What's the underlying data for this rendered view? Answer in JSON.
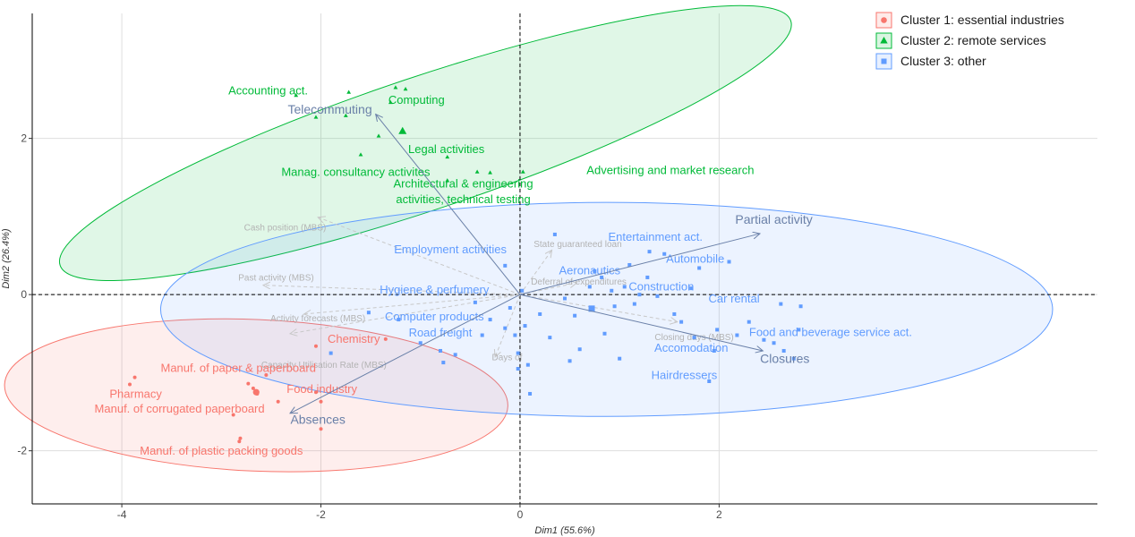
{
  "colors": {
    "cluster1": "#f8766d",
    "cluster2": "#00ba38",
    "cluster3": "#619cff",
    "active_vars": "#6a80a8",
    "supp_vars": "#c8c8c8"
  },
  "chart_data": {
    "type": "scatter",
    "subtype": "PCA biplot with clusters",
    "title": "",
    "xlabel": "Dim1 (55.6%)",
    "ylabel": "Dim2 (26.4%)",
    "xlim": [
      -4.9,
      5.8
    ],
    "ylim": [
      -2.68,
      3.6
    ],
    "x_ticks": [
      -4,
      -2,
      0,
      2
    ],
    "y_ticks": [
      -2,
      0,
      2
    ],
    "grid": true,
    "reference_lines": {
      "x": 0,
      "y": 0,
      "style": "dashed"
    },
    "legend_position": "top-right",
    "series": [
      {
        "name": "Cluster 1: essential industries",
        "marker": "circle",
        "color": "#f8766d",
        "points": [
          [
            -3.92,
            -1.15
          ],
          [
            -3.87,
            -1.06
          ],
          [
            -2.73,
            -1.14
          ],
          [
            -2.68,
            -1.2
          ],
          [
            -2.66,
            -1.25
          ],
          [
            -2.64,
            -1.27
          ],
          [
            -2.55,
            -1.03
          ],
          [
            -2.43,
            -1.37
          ],
          [
            -2.88,
            -1.54
          ],
          [
            -2.81,
            -1.84
          ],
          [
            -2.82,
            -1.88
          ],
          [
            -2.05,
            -0.66
          ],
          [
            -2.05,
            -1.25
          ],
          [
            -2.0,
            -1.37
          ],
          [
            -2.0,
            -1.72
          ],
          [
            -1.35,
            -0.57
          ]
        ],
        "centroid": [
          -2.65,
          -1.25
        ],
        "labels": [
          {
            "text": "Chemistry",
            "x": -1.67,
            "y": -0.58
          },
          {
            "text": "Manuf. of paper & paperboard",
            "x": -2.83,
            "y": -0.95
          },
          {
            "text": "Pharmacy",
            "x": -3.86,
            "y": -1.28
          },
          {
            "text": "Food industry",
            "x": -1.99,
            "y": -1.22
          },
          {
            "text": "Manuf. of corrugated paperboard",
            "x": -3.42,
            "y": -1.47
          },
          {
            "text": "Manuf. of plastic packing goods",
            "x": -3.0,
            "y": -2.01
          }
        ]
      },
      {
        "name": "Cluster 2: remote services",
        "marker": "triangle",
        "color": "#00ba38",
        "points": [
          [
            -2.25,
            2.55
          ],
          [
            -2.05,
            2.27
          ],
          [
            -1.75,
            2.29
          ],
          [
            -1.72,
            2.59
          ],
          [
            -1.6,
            1.79
          ],
          [
            -1.42,
            2.03
          ],
          [
            -1.3,
            2.46
          ],
          [
            -1.25,
            2.65
          ],
          [
            -1.15,
            2.63
          ],
          [
            -0.73,
            1.76
          ],
          [
            -0.73,
            1.46
          ],
          [
            -0.43,
            1.57
          ],
          [
            -0.3,
            1.56
          ],
          [
            0.03,
            1.57
          ]
        ],
        "centroid": [
          -1.18,
          2.09
        ],
        "labels": [
          {
            "text": "Accounting act.",
            "x": -2.53,
            "y": 2.6
          },
          {
            "text": "Computing",
            "x": -1.04,
            "y": 2.48
          },
          {
            "text": "Legal activities",
            "x": -0.74,
            "y": 1.85
          },
          {
            "text": "Manag. consultancy activites",
            "x": -1.65,
            "y": 1.56
          },
          {
            "text": "Advertising and market research",
            "x": 1.51,
            "y": 1.58
          },
          {
            "text": "Architectural & engineering",
            "x": -0.57,
            "y": 1.41
          },
          {
            "text": "activities, technical testing",
            "x": -0.57,
            "y": 1.21
          }
        ]
      },
      {
        "name": "Cluster 3: other",
        "marker": "square",
        "color": "#619cff",
        "points": [
          [
            -1.52,
            -0.23
          ],
          [
            -1.22,
            -0.32
          ],
          [
            -1.0,
            -0.62
          ],
          [
            -0.8,
            -0.72
          ],
          [
            -0.77,
            -0.87
          ],
          [
            -0.65,
            -0.77
          ],
          [
            -0.45,
            -0.1
          ],
          [
            -0.38,
            -0.52
          ],
          [
            -0.3,
            -0.32
          ],
          [
            -0.15,
            -0.43
          ],
          [
            -0.15,
            0.37
          ],
          [
            -0.1,
            -0.17
          ],
          [
            -0.05,
            -0.52
          ],
          [
            -0.02,
            -0.75
          ],
          [
            -0.02,
            -0.95
          ],
          [
            0.02,
            0.05
          ],
          [
            0.05,
            -0.4
          ],
          [
            0.08,
            -0.9
          ],
          [
            0.1,
            -1.27
          ],
          [
            0.2,
            -0.25
          ],
          [
            0.35,
            0.77
          ],
          [
            0.45,
            -0.05
          ],
          [
            0.5,
            -0.85
          ],
          [
            0.55,
            -0.27
          ],
          [
            0.7,
            0.1
          ],
          [
            0.75,
            0.3
          ],
          [
            0.82,
            0.22
          ],
          [
            0.85,
            -0.5
          ],
          [
            0.95,
            -0.15
          ],
          [
            1.0,
            -0.82
          ],
          [
            1.05,
            0.1
          ],
          [
            1.1,
            0.38
          ],
          [
            1.15,
            -0.12
          ],
          [
            1.2,
            0.0
          ],
          [
            1.28,
            0.22
          ],
          [
            1.3,
            0.55
          ],
          [
            1.38,
            -0.02
          ],
          [
            1.45,
            0.52
          ],
          [
            1.55,
            -0.25
          ],
          [
            1.72,
            0.08
          ],
          [
            1.75,
            -0.55
          ],
          [
            1.8,
            0.34
          ],
          [
            1.95,
            -0.72
          ],
          [
            1.98,
            -0.45
          ],
          [
            2.1,
            0.42
          ],
          [
            2.18,
            -0.52
          ],
          [
            2.3,
            -0.35
          ],
          [
            2.45,
            -0.58
          ],
          [
            2.62,
            -0.12
          ],
          [
            2.75,
            -0.82
          ],
          [
            2.8,
            -0.45
          ],
          [
            0.3,
            -0.55
          ],
          [
            0.6,
            -0.7
          ],
          [
            0.92,
            0.05
          ],
          [
            1.62,
            -0.35
          ],
          [
            2.55,
            -0.62
          ],
          [
            2.65,
            -0.72
          ],
          [
            2.82,
            -0.15
          ],
          [
            1.9,
            -1.11
          ],
          [
            -1.9,
            -0.75
          ],
          [
            0.72,
            -0.18
          ]
        ],
        "centroid": [
          0.72,
          -0.18
        ],
        "labels": [
          {
            "text": "Entertainment act.",
            "x": 1.36,
            "y": 0.73
          },
          {
            "text": "Employment activities",
            "x": -0.7,
            "y": 0.57
          },
          {
            "text": "Automobile",
            "x": 1.76,
            "y": 0.45
          },
          {
            "text": "Aeronautics",
            "x": 0.7,
            "y": 0.3
          },
          {
            "text": "Construction",
            "x": 1.42,
            "y": 0.09
          },
          {
            "text": "Hygiene & perfumery",
            "x": -0.86,
            "y": 0.05
          },
          {
            "text": "Car rental",
            "x": 2.15,
            "y": -0.06
          },
          {
            "text": "Computer products",
            "x": -0.86,
            "y": -0.29
          },
          {
            "text": "Road freight",
            "x": -0.8,
            "y": -0.5
          },
          {
            "text": "Food and beverage service act.",
            "x": 3.12,
            "y": -0.49
          },
          {
            "text": "Accomodation",
            "x": 1.72,
            "y": -0.69
          },
          {
            "text": "Hairdressers",
            "x": 1.65,
            "y": -1.04
          }
        ]
      }
    ],
    "ellipses": [
      {
        "cluster": 1,
        "cx": -2.65,
        "cy": -1.29,
        "rx": 2.53,
        "ry": 0.97,
        "angle_deg": 2.5
      },
      {
        "cluster": 2,
        "cx": -0.95,
        "cy": 1.94,
        "rx": 3.87,
        "ry": 0.85,
        "angle_deg": -18.5
      },
      {
        "cluster": 3,
        "cx": 0.87,
        "cy": -0.19,
        "rx": 4.48,
        "ry": 1.37,
        "angle_deg": 0
      }
    ],
    "active_variables": [
      {
        "name": "Partial activity",
        "x": 2.41,
        "y": 0.78,
        "label_x": 2.55,
        "label_y": 0.95
      },
      {
        "name": "Telecommuting",
        "x": -1.45,
        "y": 2.31,
        "label_x": -1.91,
        "label_y": 2.36
      },
      {
        "name": "Closures",
        "x": 2.44,
        "y": -0.72,
        "label_x": 2.66,
        "label_y": -0.83
      },
      {
        "name": "Absences",
        "x": -2.31,
        "y": -1.52,
        "label_x": -2.03,
        "label_y": -1.61
      }
    ],
    "supplementary_variables": [
      {
        "name": "Cash position (MBS)",
        "x": -2.03,
        "y": 0.99,
        "label_x": -2.36,
        "label_y": 0.85
      },
      {
        "name": "Past activity (MBS)",
        "x": -2.58,
        "y": 0.12,
        "label_x": -2.45,
        "label_y": 0.21
      },
      {
        "name": "Activity forecasts (MBS)",
        "x": -2.17,
        "y": -0.25,
        "label_x": -2.03,
        "label_y": -0.31
      },
      {
        "name": "Capacity Utilisation Rate (MBS)",
        "x": -2.31,
        "y": -0.5,
        "label_x": -1.97,
        "label_y": -0.91
      },
      {
        "name": "State guaranteed loan",
        "x": 0.32,
        "y": 0.57,
        "label_x": 0.58,
        "label_y": 0.64
      },
      {
        "name": "Deferral of expenditures",
        "x": 0.57,
        "y": 0.15,
        "label_x": 0.59,
        "label_y": 0.16
      },
      {
        "name": "Closing days (MBS)",
        "x": 1.58,
        "y": -0.35,
        "label_x": 1.75,
        "label_y": -0.55
      },
      {
        "name": "Days of",
        "x": -0.25,
        "y": -0.8,
        "label_x": -0.13,
        "label_y": -0.81
      }
    ]
  }
}
